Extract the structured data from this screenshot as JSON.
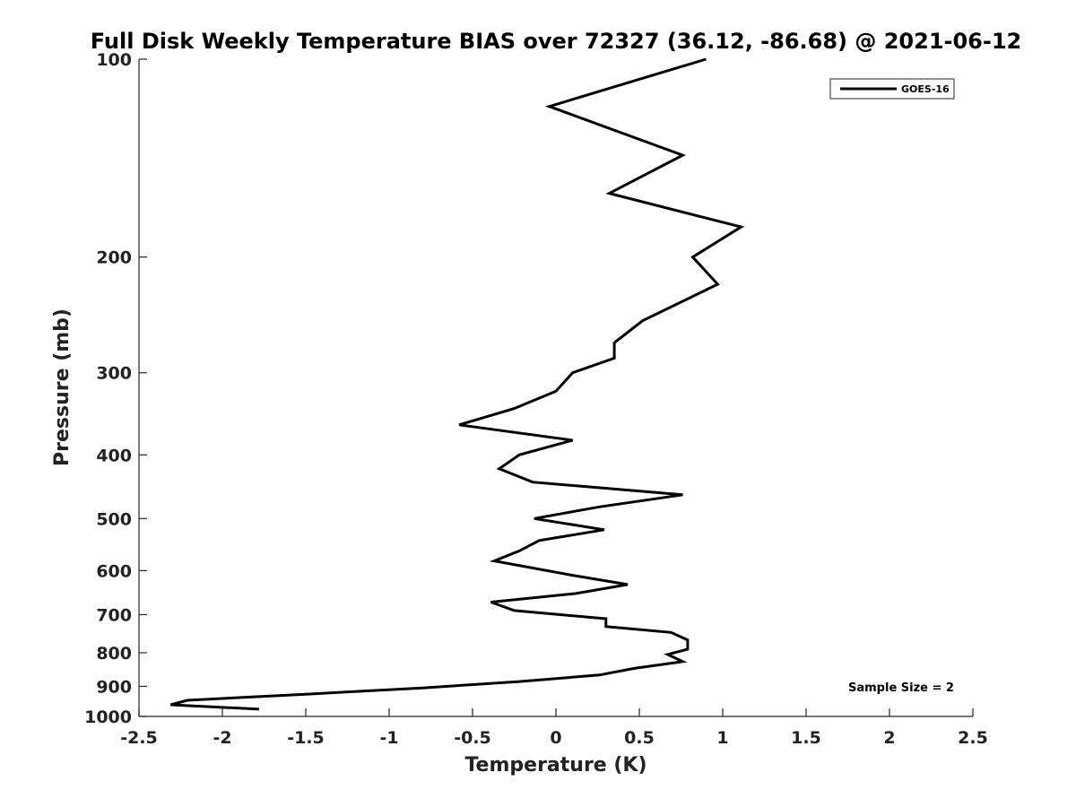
{
  "chart_data": {
    "type": "line",
    "title": "Full Disk Weekly Temperature BIAS over 72327 (36.12, -86.68) @ 2021-06-12",
    "xlabel": "Temperature (K)",
    "ylabel": "Pressure (mb)",
    "xlim": [
      -2.5,
      2.5
    ],
    "ylim": [
      1000,
      100
    ],
    "yscale": "log",
    "x_ticks": [
      -2.5,
      -2,
      -1.5,
      -1,
      -0.5,
      0,
      0.5,
      1,
      1.5,
      2,
      2.5
    ],
    "x_tick_labels": [
      "-2.5",
      "-2",
      "-1.5",
      "-1",
      "-0.5",
      "0",
      "0.5",
      "1",
      "1.5",
      "2",
      "2.5"
    ],
    "y_ticks": [
      100,
      200,
      300,
      400,
      500,
      600,
      700,
      800,
      900,
      1000
    ],
    "y_tick_labels": [
      "100",
      "200",
      "300",
      "400",
      "500",
      "600",
      "700",
      "800",
      "900",
      "1000"
    ],
    "grid": false,
    "legend_position": "top-right",
    "annotation": "Sample Size = 2",
    "series": [
      {
        "name": "GOES-16",
        "color": "#000000",
        "points": [
          {
            "x": 0.9,
            "y": 100
          },
          {
            "x": -0.04,
            "y": 118
          },
          {
            "x": 0.76,
            "y": 140
          },
          {
            "x": 0.32,
            "y": 160
          },
          {
            "x": 1.11,
            "y": 180
          },
          {
            "x": 0.82,
            "y": 200
          },
          {
            "x": 0.97,
            "y": 220
          },
          {
            "x": 0.52,
            "y": 250
          },
          {
            "x": 0.35,
            "y": 270
          },
          {
            "x": 0.35,
            "y": 285
          },
          {
            "x": 0.1,
            "y": 300
          },
          {
            "x": 0.0,
            "y": 320
          },
          {
            "x": -0.25,
            "y": 340
          },
          {
            "x": -0.58,
            "y": 360
          },
          {
            "x": 0.1,
            "y": 380
          },
          {
            "x": -0.22,
            "y": 400
          },
          {
            "x": -0.34,
            "y": 420
          },
          {
            "x": -0.14,
            "y": 440
          },
          {
            "x": 0.76,
            "y": 460
          },
          {
            "x": 0.26,
            "y": 480
          },
          {
            "x": -0.13,
            "y": 500
          },
          {
            "x": 0.29,
            "y": 520
          },
          {
            "x": -0.1,
            "y": 540
          },
          {
            "x": -0.22,
            "y": 560
          },
          {
            "x": -0.37,
            "y": 580
          },
          {
            "x": 0.1,
            "y": 610
          },
          {
            "x": 0.43,
            "y": 630
          },
          {
            "x": 0.12,
            "y": 650
          },
          {
            "x": -0.39,
            "y": 670
          },
          {
            "x": -0.25,
            "y": 690
          },
          {
            "x": 0.3,
            "y": 710
          },
          {
            "x": 0.3,
            "y": 730
          },
          {
            "x": 0.69,
            "y": 745
          },
          {
            "x": 0.79,
            "y": 765
          },
          {
            "x": 0.79,
            "y": 790
          },
          {
            "x": 0.67,
            "y": 805
          },
          {
            "x": 0.76,
            "y": 825
          },
          {
            "x": 0.47,
            "y": 845
          },
          {
            "x": 0.26,
            "y": 865
          },
          {
            "x": -0.22,
            "y": 885
          },
          {
            "x": -0.8,
            "y": 905
          },
          {
            "x": -1.5,
            "y": 925
          },
          {
            "x": -2.21,
            "y": 945
          },
          {
            "x": -2.31,
            "y": 960
          },
          {
            "x": -1.78,
            "y": 975
          }
        ]
      }
    ]
  }
}
